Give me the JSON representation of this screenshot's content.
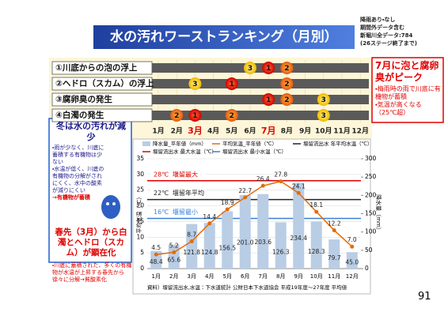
{
  "header": {
    "title": "水の汚れワーストランキング（月別）",
    "notes": [
      "降雨あり・なし",
      "期間外データ含む",
      "新堀川全データ:784",
      "(26ステージ終了まで)"
    ]
  },
  "ranking": {
    "months": [
      "1月",
      "2月",
      "3月",
      "4月",
      "5月",
      "6月",
      "7月",
      "8月",
      "9月",
      "10月",
      "11月",
      "12月"
    ],
    "items": [
      {
        "label": "①川底からの泡の浮上",
        "ranks": [
          null,
          null,
          null,
          null,
          null,
          3,
          1,
          2,
          null,
          null,
          null,
          null
        ]
      },
      {
        "label": "②ヘドロ（スカム）の浮上",
        "ranks": [
          null,
          null,
          3,
          null,
          1,
          null,
          null,
          2,
          null,
          null,
          null,
          null
        ]
      },
      {
        "label": "③腐卵臭の発生",
        "ranks": [
          null,
          null,
          null,
          null,
          null,
          null,
          1,
          2,
          null,
          3,
          null,
          null
        ]
      },
      {
        "label": "④白濁の発生",
        "ranks": [
          null,
          2,
          1,
          null,
          2,
          null,
          null,
          null,
          null,
          3,
          null,
          null
        ]
      }
    ]
  },
  "callout": {
    "title": "7月に泡と腐卵臭がピーク",
    "points": [
      "・梅雨時の雨で川底に有機物が蓄積",
      "・気温が高くなる（25℃超）"
    ]
  },
  "left_box": {
    "title": "冬は水の汚れが減少",
    "points": [
      "・雨が少なく、川底に蓄積する有機物は少ない",
      "・水温が低く、川底の有機物の分解がされにくく、水中の酸素が減りにくい"
    ],
    "result": "→有機物が蓄積",
    "spring_title": "春先（3月）から白濁とヘドロ（スカム）が顕在化",
    "spring_point": "・川底に蓄積された、多くの有機物が水温が上昇する春先から徐々に分解→貧酸素化"
  },
  "chart_data": {
    "type": "combo",
    "categories": [
      "1月",
      "2月",
      "3月",
      "4月",
      "5月",
      "6月",
      "7月",
      "8月",
      "9月",
      "10月",
      "11月",
      "12月"
    ],
    "series": [
      {
        "name": "降水量_平年値（mm）",
        "type": "bar",
        "axis": "y2",
        "color": "#b9cde5",
        "values": [
          48.4,
          65.6,
          121.8,
          124.8,
          156.5,
          201.0,
          203.6,
          126.3,
          234.4,
          128.3,
          79.7,
          45.0
        ],
        "value_labels": [
          "48.4",
          "65.6",
          "121.8",
          "124.8",
          "156.5",
          "201.0",
          "203.6",
          "126.3",
          "234.4",
          "128.3",
          "79.7",
          "45.0"
        ]
      },
      {
        "name": "平均気温_平年値（℃）",
        "type": "line",
        "color": "#e46c0a",
        "values": [
          4.5,
          5.2,
          8.7,
          14.4,
          18.9,
          22.7,
          26.4,
          27.8,
          24.1,
          18.1,
          12.2,
          7.0
        ],
        "value_labels": [
          "4.5",
          "5.2",
          "8.7",
          "14.4",
          "18.9",
          "22.7",
          "26.4",
          "27.8",
          "24.1",
          "18.1",
          "12.2",
          "7.0"
        ]
      }
    ],
    "reference_lines": [
      {
        "name": "堰留流出水 最大水温（℃）",
        "value": 28,
        "label": "28℃",
        "annotation": "堰留最大",
        "color": "#e00000"
      },
      {
        "name": "堰留流出水 年平均水温（℃）",
        "value": 22,
        "label": "22℃",
        "annotation": "堰留年平均",
        "color": "#222222"
      },
      {
        "name": "堰留流出水 最小水温（℃）",
        "value": 16,
        "label": "16℃",
        "annotation": "堰留最小",
        "color": "#3a7fd5"
      }
    ],
    "ylabel": "平均気温（℃）",
    "y2label": "降水量（mm）",
    "ylim": [
      0,
      35
    ],
    "yticks": [
      0,
      5,
      10,
      15,
      20,
      25,
      30,
      35
    ],
    "y2lim": [
      0,
      300
    ],
    "y2ticks": [
      0,
      50,
      100,
      150,
      200,
      250,
      300
    ],
    "grid": true,
    "source": "資料）堰留流出水,水温：下水道統計 公財日本下水道協会 平成19年度～27年度 平均値"
  },
  "page_number": "91"
}
